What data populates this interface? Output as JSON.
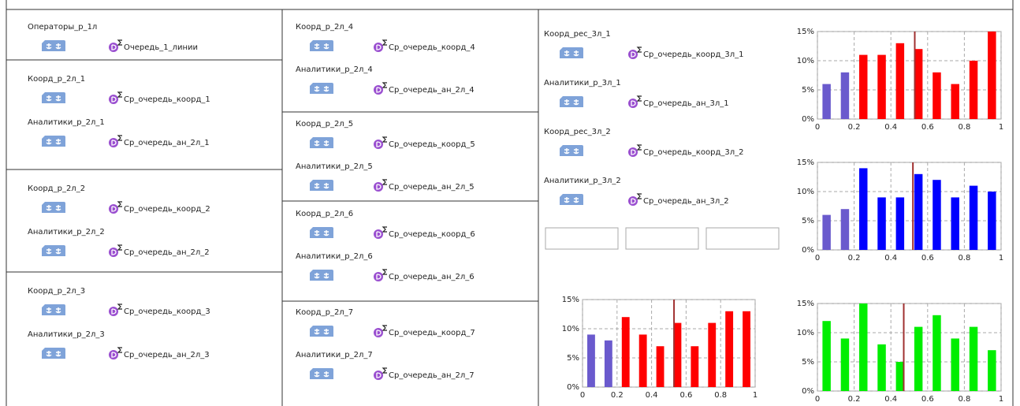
{
  "columns": [
    [
      [
        {
          "label": "Операторы_р_1л",
          "stat": "Очередь_1_линии"
        }
      ],
      [
        {
          "label": "Коорд_р_2л_1",
          "stat": "Ср_очередь_коорд_1"
        },
        {
          "label": "Аналитики_р_2л_1",
          "stat": "Ср_очередь_ан_2л_1"
        }
      ],
      [
        {
          "label": "Коорд_р_2л_2",
          "stat": "Ср_очередь_коорд_2"
        },
        {
          "label": "Аналитики_р_2л_2",
          "stat": "Ср_очередь_ан_2л_2"
        }
      ],
      [
        {
          "label": "Коорд_р_2л_3",
          "stat": "Ср_очередь_коорд_3"
        },
        {
          "label": "Аналитики_р_2л_3",
          "stat": "Ср_очередь_ан_2л_3"
        }
      ]
    ],
    [
      [
        {
          "label": "Коорд_р_2л_4",
          "stat": "Ср_очередь_коорд_4"
        },
        {
          "label": "Аналитики_р_2л_4",
          "stat": "Ср_очередь_ан_2л_4"
        }
      ],
      [
        {
          "label": "Коорд_р_2л_5",
          "stat": "Ср_очередь_коорд_5"
        },
        {
          "label": "Аналитики_р_2л_5",
          "stat": "Ср_очередь_ан_2л_5"
        }
      ],
      [
        {
          "label": "Коорд_р_2л_6",
          "stat": "Ср_очередь_коорд_6"
        },
        {
          "label": "Аналитики_р_2л_6",
          "stat": "Ср_очередь_ан_2л_6"
        }
      ],
      [
        {
          "label": "Коорд_р_2л_7",
          "stat": "Ср_очередь_коорд_7"
        },
        {
          "label": "Аналитики_р_2л_7",
          "stat": "Ср_очередь_ан_2л_7"
        }
      ]
    ],
    [
      [
        {
          "label": "Коорд_рес_3л_1",
          "stat": "Ср_очередь_коорд_3л_1"
        },
        {
          "label": "Аналитики_р_3л_1",
          "stat": "Ср_очередь_ан_3л_1"
        },
        {
          "label": "Коорд_рес_3л_2",
          "stat": "Ср_очередь_коорд_3л_2"
        },
        {
          "label": "Аналитики_р_3л_2",
          "stat": "Ср_очередь_ан_3л_2"
        }
      ]
    ]
  ],
  "chart_data": [
    {
      "type": "histogram",
      "bins": [
        0,
        0.1,
        0.2,
        0.3,
        0.4,
        0.5,
        0.6,
        0.7,
        0.8,
        0.9,
        1
      ],
      "values": [
        6,
        8,
        11,
        11,
        13,
        12,
        8,
        6,
        10,
        15
      ],
      "colors": [
        "#6a5acd",
        "#6a5acd",
        "#ff0000",
        "#ff0000",
        "#ff0000",
        "#ff0000",
        "#ff0000",
        "#ff0000",
        "#ff0000",
        "#ff0000"
      ],
      "marker": 0.53,
      "marker_color": "#a03030",
      "xlim": [
        0,
        1
      ],
      "ylim": [
        0,
        15
      ],
      "xticks": [
        0,
        0.2,
        0.4,
        0.6,
        0.8,
        1
      ],
      "yticks": [
        {
          "value": 0,
          "label": "0%"
        },
        {
          "value": 5,
          "label": "5%"
        },
        {
          "value": 10,
          "label": "10%"
        },
        {
          "value": 15,
          "label": "15%"
        }
      ],
      "grid": true
    },
    {
      "type": "histogram",
      "bins": [
        0,
        0.1,
        0.2,
        0.3,
        0.4,
        0.5,
        0.6,
        0.7,
        0.8,
        0.9,
        1
      ],
      "values": [
        6,
        7,
        14,
        9,
        9,
        13,
        12,
        9,
        11,
        10
      ],
      "colors": [
        "#6a5acd",
        "#6a5acd",
        "#0000ff",
        "#0000ff",
        "#0000ff",
        "#0000ff",
        "#0000ff",
        "#0000ff",
        "#0000ff",
        "#0000ff"
      ],
      "marker": 0.52,
      "marker_color": "#a03030",
      "xlim": [
        0,
        1
      ],
      "ylim": [
        0,
        15
      ],
      "xticks": [
        0,
        0.2,
        0.4,
        0.6,
        0.8,
        1
      ],
      "yticks": [
        {
          "value": 0,
          "label": "0%"
        },
        {
          "value": 5,
          "label": "5%"
        },
        {
          "value": 10,
          "label": "10%"
        },
        {
          "value": 15,
          "label": "15%"
        }
      ],
      "grid": true
    },
    {
      "type": "histogram",
      "bins": [
        0,
        0.1,
        0.2,
        0.3,
        0.4,
        0.5,
        0.6,
        0.7,
        0.8,
        0.9,
        1
      ],
      "values": [
        9,
        8,
        12,
        9,
        7,
        11,
        7,
        11,
        13,
        13
      ],
      "colors": [
        "#6a5acd",
        "#6a5acd",
        "#ff0000",
        "#ff0000",
        "#ff0000",
        "#ff0000",
        "#ff0000",
        "#ff0000",
        "#ff0000",
        "#ff0000"
      ],
      "marker": 0.53,
      "marker_color": "#a03030",
      "xlim": [
        0,
        1
      ],
      "ylim": [
        0,
        15
      ],
      "xticks": [
        0,
        0.2,
        0.4,
        0.6,
        0.8,
        1
      ],
      "yticks": [
        {
          "value": 0,
          "label": "0%"
        },
        {
          "value": 5,
          "label": "5%"
        },
        {
          "value": 10,
          "label": "10%"
        },
        {
          "value": 15,
          "label": "15%"
        }
      ],
      "grid": true
    },
    {
      "type": "histogram",
      "bins": [
        0,
        0.1,
        0.2,
        0.3,
        0.4,
        0.5,
        0.6,
        0.7,
        0.8,
        0.9,
        1
      ],
      "values": [
        12,
        9,
        15,
        8,
        5,
        11,
        13,
        9,
        11,
        7
      ],
      "colors": [
        "#00ee00",
        "#00ee00",
        "#00ee00",
        "#00ee00",
        "#00ee00",
        "#00ee00",
        "#00ee00",
        "#00ee00",
        "#00ee00",
        "#00ee00"
      ],
      "marker": 0.47,
      "marker_color": "#a03030",
      "xlim": [
        0,
        1
      ],
      "ylim": [
        0,
        15
      ],
      "xticks": [
        0,
        0.2,
        0.4,
        0.6,
        0.8,
        1
      ],
      "yticks": [
        {
          "value": 0,
          "label": "0%"
        },
        {
          "value": 5,
          "label": "5%"
        },
        {
          "value": 10,
          "label": "10%"
        },
        {
          "value": 15,
          "label": "15%"
        }
      ],
      "grid": true
    }
  ]
}
